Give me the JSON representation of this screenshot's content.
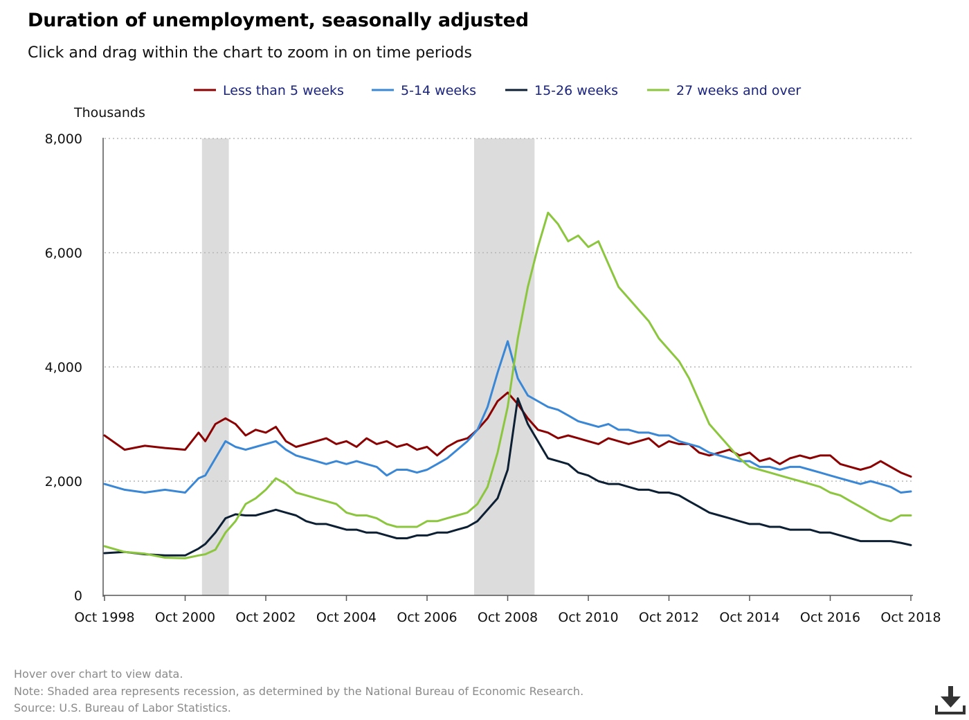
{
  "header": {
    "title": "Duration of unemployment, seasonally adjusted",
    "subtitle": "Click and drag within the chart to zoom in on time periods"
  },
  "footer": {
    "hover_note": "Hover over chart to view data.",
    "note": "Note: Shaded area represents recession, as determined by the National Bureau of Economic Research.",
    "source": "Source: U.S. Bureau of Labor Statistics."
  },
  "download_icon": "download-icon",
  "chart_data": {
    "type": "line",
    "title": "Duration of unemployment, seasonally adjusted",
    "ylabel": "Thousands",
    "xlabel": "",
    "ylim": [
      0,
      8000
    ],
    "yticks": [
      0,
      2000,
      4000,
      6000,
      8000
    ],
    "ytick_labels": [
      "0",
      "2,000",
      "4,000",
      "6,000",
      "8,000"
    ],
    "x_start": "1998-10",
    "x_end": "2018-10",
    "xtick_labels": [
      "Oct 1998",
      "Oct 2000",
      "Oct 2002",
      "Oct 2004",
      "Oct 2006",
      "Oct 2008",
      "Oct 2010",
      "Oct 2012",
      "Oct 2014",
      "Oct 2016",
      "Oct 2018"
    ],
    "grid": "horizontal dotted",
    "legend_position": "top",
    "recessions": [
      {
        "start": "2001-03",
        "end": "2001-11"
      },
      {
        "start": "2007-12",
        "end": "2009-06"
      }
    ],
    "series": [
      {
        "name": "Less than 5 weeks",
        "color": "#8b0000",
        "x": [
          "1998-10",
          "1999-04",
          "1999-10",
          "2000-04",
          "2000-10",
          "2001-02",
          "2001-04",
          "2001-07",
          "2001-10",
          "2002-01",
          "2002-04",
          "2002-07",
          "2002-10",
          "2003-01",
          "2003-04",
          "2003-07",
          "2003-10",
          "2004-01",
          "2004-04",
          "2004-07",
          "2004-10",
          "2005-01",
          "2005-04",
          "2005-07",
          "2005-10",
          "2006-01",
          "2006-04",
          "2006-07",
          "2006-10",
          "2007-01",
          "2007-04",
          "2007-07",
          "2007-10",
          "2008-01",
          "2008-04",
          "2008-07",
          "2008-10",
          "2009-01",
          "2009-04",
          "2009-07",
          "2009-10",
          "2010-01",
          "2010-04",
          "2010-07",
          "2010-10",
          "2011-01",
          "2011-04",
          "2011-07",
          "2011-10",
          "2012-01",
          "2012-04",
          "2012-07",
          "2012-10",
          "2013-01",
          "2013-04",
          "2013-07",
          "2013-10",
          "2014-01",
          "2014-04",
          "2014-07",
          "2014-10",
          "2015-01",
          "2015-04",
          "2015-07",
          "2015-10",
          "2016-01",
          "2016-04",
          "2016-07",
          "2016-10",
          "2017-01",
          "2017-04",
          "2017-07",
          "2017-10",
          "2018-01",
          "2018-04",
          "2018-07",
          "2018-10"
        ],
        "values": [
          2800,
          2550,
          2620,
          2580,
          2550,
          2850,
          2700,
          3000,
          3100,
          3000,
          2800,
          2900,
          2850,
          2950,
          2700,
          2600,
          2650,
          2700,
          2750,
          2650,
          2700,
          2600,
          2750,
          2650,
          2700,
          2600,
          2650,
          2550,
          2600,
          2450,
          2600,
          2700,
          2750,
          2900,
          3100,
          3400,
          3550,
          3350,
          3100,
          2900,
          2850,
          2750,
          2800,
          2750,
          2700,
          2650,
          2750,
          2700,
          2650,
          2700,
          2750,
          2600,
          2700,
          2650,
          2650,
          2500,
          2450,
          2500,
          2550,
          2450,
          2500,
          2350,
          2400,
          2300,
          2400,
          2450,
          2400,
          2450,
          2450,
          2300,
          2250,
          2200,
          2250,
          2350,
          2250,
          2150,
          2080
        ]
      },
      {
        "name": "5-14 weeks",
        "color": "#3a87d6",
        "x": [
          "1998-10",
          "1999-04",
          "1999-10",
          "2000-04",
          "2000-10",
          "2001-02",
          "2001-04",
          "2001-07",
          "2001-10",
          "2002-01",
          "2002-04",
          "2002-07",
          "2002-10",
          "2003-01",
          "2003-04",
          "2003-07",
          "2003-10",
          "2004-01",
          "2004-04",
          "2004-07",
          "2004-10",
          "2005-01",
          "2005-04",
          "2005-07",
          "2005-10",
          "2006-01",
          "2006-04",
          "2006-07",
          "2006-10",
          "2007-01",
          "2007-04",
          "2007-07",
          "2007-10",
          "2008-01",
          "2008-04",
          "2008-07",
          "2008-10",
          "2009-01",
          "2009-04",
          "2009-07",
          "2009-10",
          "2010-01",
          "2010-04",
          "2010-07",
          "2010-10",
          "2011-01",
          "2011-04",
          "2011-07",
          "2011-10",
          "2012-01",
          "2012-04",
          "2012-07",
          "2012-10",
          "2013-01",
          "2013-04",
          "2013-07",
          "2013-10",
          "2014-01",
          "2014-04",
          "2014-07",
          "2014-10",
          "2015-01",
          "2015-04",
          "2015-07",
          "2015-10",
          "2016-01",
          "2016-04",
          "2016-07",
          "2016-10",
          "2017-01",
          "2017-04",
          "2017-07",
          "2017-10",
          "2018-01",
          "2018-04",
          "2018-07",
          "2018-10"
        ],
        "values": [
          1950,
          1850,
          1800,
          1850,
          1800,
          2050,
          2100,
          2400,
          2700,
          2600,
          2550,
          2600,
          2650,
          2700,
          2550,
          2450,
          2400,
          2350,
          2300,
          2350,
          2300,
          2350,
          2300,
          2250,
          2100,
          2200,
          2200,
          2150,
          2200,
          2300,
          2400,
          2550,
          2700,
          2900,
          3300,
          3900,
          4450,
          3800,
          3500,
          3400,
          3300,
          3250,
          3150,
          3050,
          3000,
          2950,
          3000,
          2900,
          2900,
          2850,
          2850,
          2800,
          2800,
          2700,
          2650,
          2600,
          2500,
          2450,
          2400,
          2350,
          2350,
          2250,
          2250,
          2200,
          2250,
          2250,
          2200,
          2150,
          2100,
          2050,
          2000,
          1950,
          2000,
          1950,
          1900,
          1800,
          1820
        ]
      },
      {
        "name": "15-26 weeks",
        "color": "#0d1f33",
        "x": [
          "1998-10",
          "1999-04",
          "1999-10",
          "2000-04",
          "2000-10",
          "2001-02",
          "2001-04",
          "2001-07",
          "2001-10",
          "2002-01",
          "2002-04",
          "2002-07",
          "2002-10",
          "2003-01",
          "2003-04",
          "2003-07",
          "2003-10",
          "2004-01",
          "2004-04",
          "2004-07",
          "2004-10",
          "2005-01",
          "2005-04",
          "2005-07",
          "2005-10",
          "2006-01",
          "2006-04",
          "2006-07",
          "2006-10",
          "2007-01",
          "2007-04",
          "2007-07",
          "2007-10",
          "2008-01",
          "2008-04",
          "2008-07",
          "2008-10",
          "2009-01",
          "2009-04",
          "2009-07",
          "2009-10",
          "2010-01",
          "2010-04",
          "2010-07",
          "2010-10",
          "2011-01",
          "2011-04",
          "2011-07",
          "2011-10",
          "2012-01",
          "2012-04",
          "2012-07",
          "2012-10",
          "2013-01",
          "2013-04",
          "2013-07",
          "2013-10",
          "2014-01",
          "2014-04",
          "2014-07",
          "2014-10",
          "2015-01",
          "2015-04",
          "2015-07",
          "2015-10",
          "2016-01",
          "2016-04",
          "2016-07",
          "2016-10",
          "2017-01",
          "2017-04",
          "2017-07",
          "2017-10",
          "2018-01",
          "2018-04",
          "2018-07",
          "2018-10"
        ],
        "values": [
          740,
          760,
          720,
          700,
          700,
          820,
          900,
          1100,
          1350,
          1420,
          1400,
          1400,
          1450,
          1500,
          1450,
          1400,
          1300,
          1250,
          1250,
          1200,
          1150,
          1150,
          1100,
          1100,
          1050,
          1000,
          1000,
          1050,
          1050,
          1100,
          1100,
          1150,
          1200,
          1300,
          1500,
          1700,
          2200,
          3450,
          3000,
          2700,
          2400,
          2350,
          2300,
          2150,
          2100,
          2000,
          1950,
          1950,
          1900,
          1850,
          1850,
          1800,
          1800,
          1750,
          1650,
          1550,
          1450,
          1400,
          1350,
          1300,
          1250,
          1250,
          1200,
          1200,
          1150,
          1150,
          1150,
          1100,
          1100,
          1050,
          1000,
          950,
          950,
          950,
          950,
          920,
          880
        ]
      },
      {
        "name": "27 weeks and over",
        "color": "#8cc63f",
        "x": [
          "1998-10",
          "1999-04",
          "1999-10",
          "2000-04",
          "2000-10",
          "2001-02",
          "2001-04",
          "2001-07",
          "2001-10",
          "2002-01",
          "2002-04",
          "2002-07",
          "2002-10",
          "2003-01",
          "2003-04",
          "2003-07",
          "2003-10",
          "2004-01",
          "2004-04",
          "2004-07",
          "2004-10",
          "2005-01",
          "2005-04",
          "2005-07",
          "2005-10",
          "2006-01",
          "2006-04",
          "2006-07",
          "2006-10",
          "2007-01",
          "2007-04",
          "2007-07",
          "2007-10",
          "2008-01",
          "2008-04",
          "2008-07",
          "2008-10",
          "2009-01",
          "2009-04",
          "2009-07",
          "2009-10",
          "2010-01",
          "2010-04",
          "2010-07",
          "2010-10",
          "2011-01",
          "2011-04",
          "2011-07",
          "2011-10",
          "2012-01",
          "2012-04",
          "2012-07",
          "2012-10",
          "2013-01",
          "2013-04",
          "2013-07",
          "2013-10",
          "2014-01",
          "2014-04",
          "2014-07",
          "2014-10",
          "2015-01",
          "2015-04",
          "2015-07",
          "2015-10",
          "2016-01",
          "2016-04",
          "2016-07",
          "2016-10",
          "2017-01",
          "2017-04",
          "2017-07",
          "2017-10",
          "2018-01",
          "2018-04",
          "2018-07",
          "2018-10"
        ],
        "values": [
          860,
          760,
          730,
          660,
          650,
          700,
          720,
          800,
          1100,
          1300,
          1600,
          1700,
          1850,
          2050,
          1950,
          1800,
          1750,
          1700,
          1650,
          1600,
          1450,
          1400,
          1400,
          1350,
          1250,
          1200,
          1200,
          1200,
          1300,
          1300,
          1350,
          1400,
          1450,
          1600,
          1900,
          2500,
          3300,
          4500,
          5400,
          6100,
          6700,
          6500,
          6200,
          6300,
          6100,
          6200,
          5800,
          5400,
          5200,
          5000,
          4800,
          4500,
          4300,
          4100,
          3800,
          3400,
          3000,
          2800,
          2600,
          2400,
          2250,
          2200,
          2150,
          2100,
          2050,
          2000,
          1950,
          1900,
          1800,
          1750,
          1650,
          1550,
          1450,
          1350,
          1300,
          1400,
          1400
        ]
      }
    ]
  }
}
